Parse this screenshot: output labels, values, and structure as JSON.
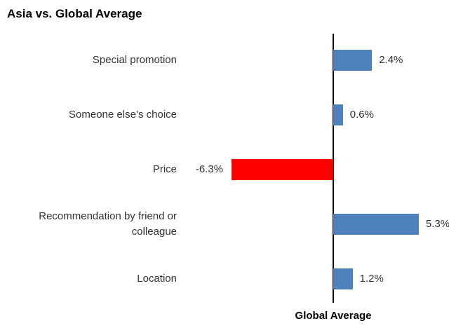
{
  "chart_data": {
    "type": "bar",
    "orientation": "horizontal",
    "title": "Asia vs. Global Average",
    "x_label": "Global Average",
    "categories": [
      "Special promotion",
      "Someone else’s choice",
      "Price",
      "Recommendation by friend or colleague",
      "Location"
    ],
    "values": [
      2.4,
      0.6,
      -6.3,
      5.3,
      1.2
    ],
    "value_labels": [
      "2.4%",
      "0.6%",
      "-6.3%",
      "5.3%",
      "1.2%"
    ],
    "colors": [
      "#4f81bd",
      "#4f81bd",
      "#ff0000",
      "#4f81bd",
      "#4f81bd"
    ]
  }
}
